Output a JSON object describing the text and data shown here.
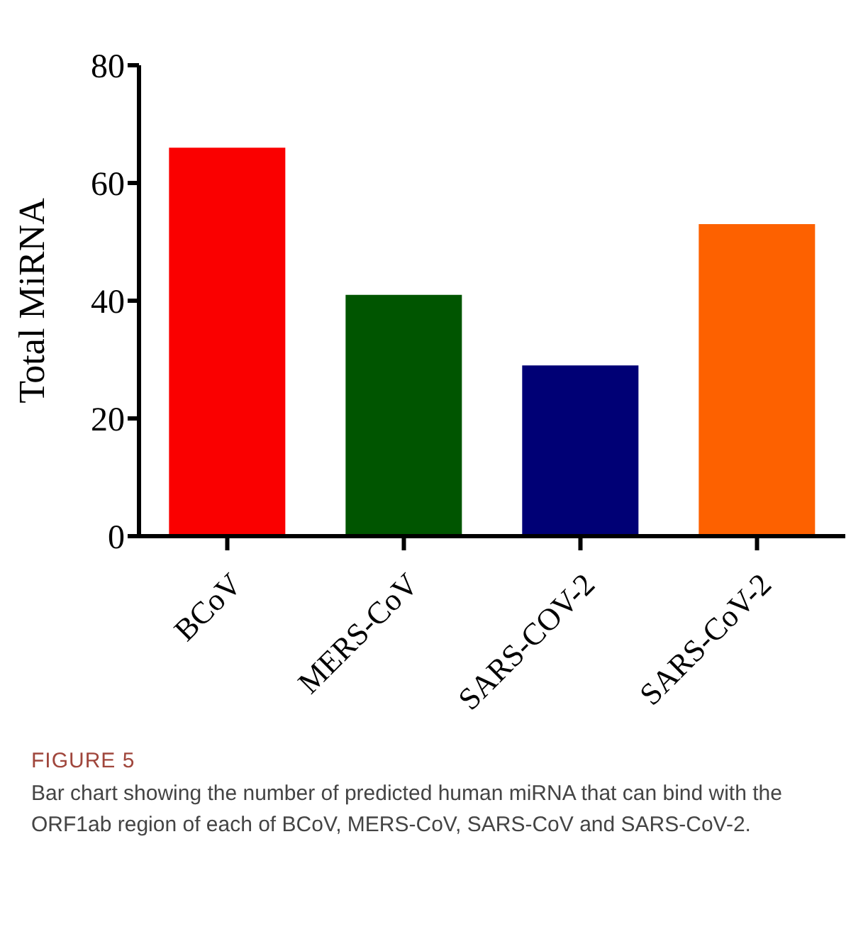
{
  "chart_data": {
    "type": "bar",
    "ylabel": "Total MiRNA",
    "categories": [
      "BCoV",
      "MERS-CoV",
      "SARS-COV-2",
      "SARS-CoV-2"
    ],
    "values": [
      66,
      41,
      29,
      53
    ],
    "colors": [
      "#fa0000",
      "#005500",
      "#000075",
      "#fd6100"
    ],
    "ylim": [
      0,
      80
    ],
    "yticks": [
      0,
      20,
      40,
      60,
      80
    ],
    "grid": false,
    "annotations": [
      "FIGURE 5",
      "Bar chart showing the number of predicted human miRNA that can bind with the ORF1ab region of each of BCoV, MERS-CoV, SARS-CoV and SARS-CoV-2."
    ]
  }
}
